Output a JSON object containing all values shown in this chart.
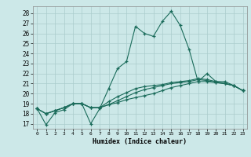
{
  "xlabel": "Humidex (Indice chaleur)",
  "background_color": "#cce8e8",
  "grid_color": "#aacccc",
  "line_color": "#1a6b5a",
  "xlim": [
    -0.5,
    23.5
  ],
  "ylim": [
    16.5,
    28.7
  ],
  "yticks": [
    17,
    18,
    19,
    20,
    21,
    22,
    23,
    24,
    25,
    26,
    27,
    28
  ],
  "xticks": [
    0,
    1,
    2,
    3,
    4,
    5,
    6,
    7,
    8,
    9,
    10,
    11,
    12,
    13,
    14,
    15,
    16,
    17,
    18,
    19,
    20,
    21,
    22,
    23
  ],
  "series": [
    [
      18.5,
      16.9,
      18.1,
      18.4,
      19.0,
      19.0,
      17.0,
      18.5,
      20.5,
      22.5,
      23.2,
      26.7,
      26.0,
      25.7,
      27.2,
      28.2,
      26.8,
      24.4,
      21.2,
      22.0,
      21.2,
      21.2,
      20.8,
      20.3
    ],
    [
      18.5,
      18.0,
      18.3,
      18.6,
      19.0,
      19.0,
      18.6,
      18.6,
      18.9,
      19.1,
      19.4,
      19.6,
      19.8,
      20.0,
      20.3,
      20.6,
      20.8,
      21.0,
      21.2,
      21.2,
      21.1,
      21.0,
      20.8,
      20.3
    ],
    [
      18.5,
      18.0,
      18.3,
      18.6,
      19.0,
      19.0,
      18.6,
      18.6,
      18.9,
      19.3,
      19.7,
      20.1,
      20.4,
      20.6,
      20.8,
      21.0,
      21.1,
      21.2,
      21.4,
      21.3,
      21.1,
      21.0,
      20.8,
      20.3
    ],
    [
      18.5,
      18.0,
      18.3,
      18.6,
      19.0,
      19.0,
      18.6,
      18.6,
      19.2,
      19.7,
      20.1,
      20.5,
      20.7,
      20.8,
      20.9,
      21.1,
      21.2,
      21.3,
      21.5,
      21.4,
      21.2,
      21.0,
      20.8,
      20.3
    ]
  ]
}
